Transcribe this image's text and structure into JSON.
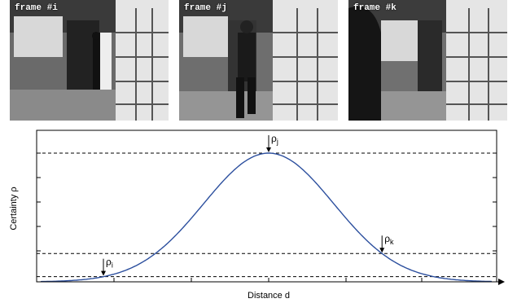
{
  "frames": [
    {
      "label": "frame #i"
    },
    {
      "label": "frame #j"
    },
    {
      "label": "frame #k"
    }
  ],
  "chart_data": {
    "type": "line",
    "xlabel": "Distance d",
    "ylabel": "Certainty ρ",
    "curve_color": "#2c4f9e",
    "markers": [
      {
        "symbol": "ρ",
        "sub": "j",
        "level": 1.0
      },
      {
        "symbol": "ρ",
        "sub": "k",
        "level": 0.22
      },
      {
        "symbol": "ρ",
        "sub": "i",
        "level": 0.04
      }
    ]
  }
}
